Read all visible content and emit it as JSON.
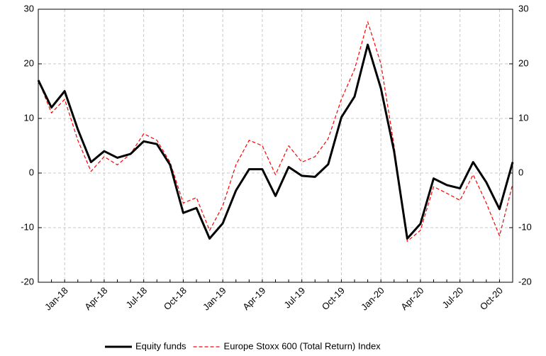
{
  "chart_data": {
    "type": "line",
    "categories": [
      null,
      null,
      "Jan-18",
      null,
      null,
      "Apr-18",
      null,
      null,
      "Jul-18",
      null,
      null,
      "Oct-18",
      null,
      null,
      "Jan-19",
      null,
      null,
      "Apr-19",
      null,
      null,
      "Jul-19",
      null,
      null,
      "Oct-19",
      null,
      null,
      "Jan-20",
      null,
      null,
      "Apr-20",
      null,
      null,
      "Jul-20",
      null,
      null,
      "Oct-20",
      null
    ],
    "series": [
      {
        "name": "Equity funds",
        "color": "#000000",
        "values": [
          17,
          12,
          15,
          8,
          2,
          4,
          2.8,
          3.5,
          5.8,
          5.3,
          1.5,
          -7.3,
          -6.4,
          -12,
          -9.2,
          -3.2,
          0.7,
          0.7,
          -4.2,
          1.1,
          -0.5,
          -0.7,
          1.6,
          10.2,
          14,
          23.5,
          15.5,
          4,
          -12,
          -9.3,
          -1,
          -2.2,
          -2.8,
          2,
          -1.7,
          -6.6,
          2
        ]
      },
      {
        "name": "Europe Stoxx 600 (Total Return) Index",
        "color": "#ff0000",
        "values": [
          17,
          11,
          13.5,
          6,
          0.3,
          3,
          1.5,
          3.5,
          7.2,
          6,
          2,
          -5.5,
          -4.5,
          -10.5,
          -6,
          1.5,
          6,
          5,
          -0.3,
          5,
          2,
          3,
          6.3,
          13.5,
          19,
          27.7,
          20,
          5,
          -12.5,
          -10.5,
          -2.5,
          -3.7,
          -5,
          -0.3,
          -5.5,
          -11.5,
          -2
        ]
      }
    ],
    "ylim": [
      -20,
      30
    ],
    "yticks": [
      -20,
      -10,
      0,
      10,
      20,
      30
    ],
    "y2lim": [
      -20,
      30
    ],
    "y2ticks": [
      -20,
      -10,
      0,
      10,
      20,
      30
    ],
    "grid": true,
    "legend": "bottom"
  }
}
